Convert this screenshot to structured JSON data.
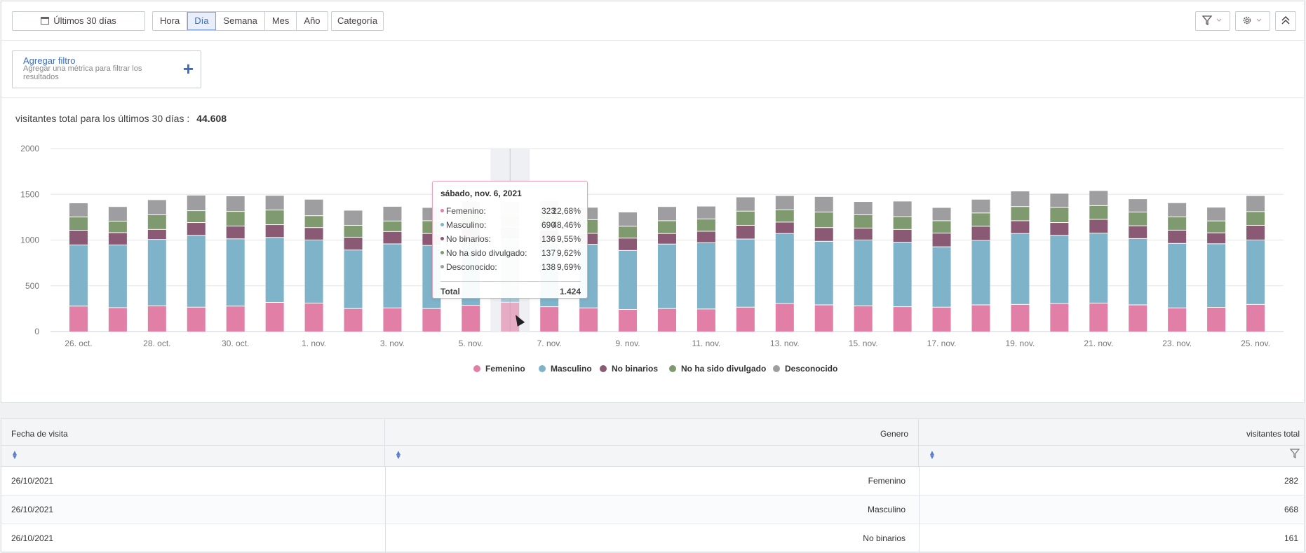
{
  "toolbar": {
    "date_range": "Últimos 30 días",
    "periods": [
      "Hora",
      "Día",
      "Semana",
      "Mes",
      "Año"
    ],
    "active_period": "Día",
    "category": "Categoría"
  },
  "filter": {
    "title": "Agregar filtro",
    "description": "Agregar una métrica para filtrar los resultados"
  },
  "summary": {
    "label": "visitantes total para los últimos 30 días :",
    "value": "44.608"
  },
  "colors": {
    "femenino": "#e27fa6",
    "masculino": "#7fb3c9",
    "no_binarios": "#8a5a75",
    "no_divulgado": "#7f9a6f",
    "desconocido": "#9e9ea1"
  },
  "chart_data": {
    "type": "bar",
    "stacked": true,
    "ylim": [
      0,
      2000
    ],
    "yticks": [
      0,
      500,
      1000,
      1500,
      2000
    ],
    "grid": true,
    "legend_position": "bottom",
    "categories": [
      "26. oct.",
      "27. oct.",
      "28. oct.",
      "29. oct.",
      "30. oct.",
      "31. oct.",
      "1. nov.",
      "2. nov.",
      "3. nov.",
      "4. nov.",
      "5. nov.",
      "6. nov.",
      "7. nov.",
      "8. nov.",
      "9. nov.",
      "10. nov.",
      "11. nov.",
      "12. nov.",
      "13. nov.",
      "14. nov.",
      "15. nov.",
      "16. nov.",
      "17. nov.",
      "18. nov.",
      "19. nov.",
      "20. nov.",
      "21. nov.",
      "22. nov.",
      "23. nov.",
      "24. nov.",
      "25. nov."
    ],
    "tick_labels": [
      "26. oct.",
      "28. oct.",
      "30. oct.",
      "1. nov.",
      "3. nov.",
      "5. nov.",
      "7. nov.",
      "9. nov.",
      "11. nov.",
      "13. nov.",
      "15. nov.",
      "17. nov.",
      "19. nov.",
      "21. nov.",
      "23. nov.",
      "25. nov."
    ],
    "series": [
      {
        "name": "Femenino",
        "values": [
          282,
          265,
          285,
          270,
          282,
          322,
          315,
          255,
          262,
          255,
          290,
          323,
          275,
          262,
          245,
          255,
          250,
          270,
          310,
          295,
          285,
          275,
          270,
          295,
          300,
          310,
          315,
          295,
          262,
          268,
          300
        ]
      },
      {
        "name": "Masculino",
        "values": [
          668,
          685,
          725,
          785,
          735,
          710,
          690,
          640,
          700,
          690,
          700,
          690,
          700,
          695,
          645,
          705,
          725,
          745,
          765,
          695,
          720,
          705,
          660,
          705,
          775,
          745,
          765,
          725,
          705,
          695,
          705
        ]
      },
      {
        "name": "No binarios",
        "values": [
          161,
          135,
          110,
          140,
          140,
          140,
          135,
          140,
          135,
          130,
          150,
          136,
          140,
          120,
          135,
          115,
          125,
          150,
          125,
          150,
          130,
          140,
          150,
          155,
          140,
          140,
          150,
          140,
          145,
          120,
          160
        ]
      },
      {
        "name": "No ha sido divulgado",
        "values": [
          145,
          125,
          160,
          130,
          160,
          160,
          130,
          130,
          115,
          140,
          140,
          137,
          150,
          150,
          130,
          140,
          135,
          155,
          135,
          170,
          145,
          140,
          135,
          145,
          155,
          165,
          150,
          150,
          145,
          130,
          150
        ]
      },
      {
        "name": "Desconocido",
        "values": [
          154,
          160,
          165,
          170,
          170,
          160,
          180,
          165,
          160,
          145,
          150,
          138,
          170,
          135,
          155,
          155,
          140,
          155,
          155,
          170,
          145,
          170,
          145,
          150,
          170,
          155,
          165,
          145,
          155,
          150,
          175
        ]
      }
    ],
    "tooltip": {
      "title": "sábado, nov. 6, 2021",
      "rows": [
        {
          "label": "Femenino:",
          "value": "323",
          "pct": "22,68%"
        },
        {
          "label": "Masculino:",
          "value": "690",
          "pct": "48,46%"
        },
        {
          "label": "No binarios:",
          "value": "136",
          "pct": "9,55%"
        },
        {
          "label": "No ha sido divulgado:",
          "value": "137",
          "pct": "9,62%"
        },
        {
          "label": "Desconocido:",
          "value": "138",
          "pct": "9,69%"
        }
      ],
      "total_label": "Total",
      "total_value": "1.424"
    }
  },
  "table": {
    "headers": [
      "Fecha de visita",
      "Genero",
      "visitantes total"
    ],
    "rows": [
      [
        "26/10/2021",
        "Femenino",
        "282"
      ],
      [
        "26/10/2021",
        "Masculino",
        "668"
      ],
      [
        "26/10/2021",
        "No binarios",
        "161"
      ]
    ]
  }
}
